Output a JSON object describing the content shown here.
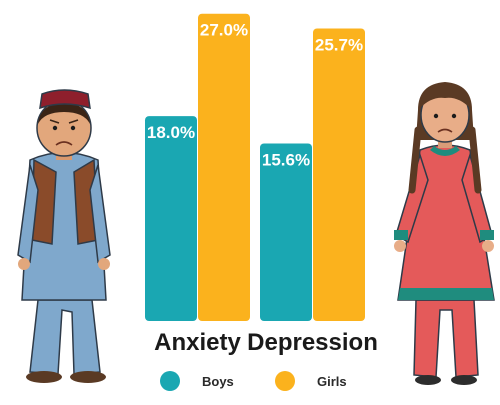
{
  "chart_data": {
    "type": "bar",
    "categories": [
      "Anxiety",
      "Depression"
    ],
    "series": [
      {
        "name": "Boys",
        "color": "#1aa7b2",
        "values": [
          18.0,
          15.6
        ]
      },
      {
        "name": "Girls",
        "color": "#fbb21d",
        "values": [
          27.0,
          25.7
        ]
      }
    ],
    "value_suffix": "%",
    "ylim": [
      0,
      27.5
    ],
    "grid": false,
    "legend_position": "bottom-center",
    "title": "",
    "xlabel": "",
    "ylabel": ""
  },
  "illustrations": {
    "left": "boy-figure",
    "right": "girl-figure"
  }
}
